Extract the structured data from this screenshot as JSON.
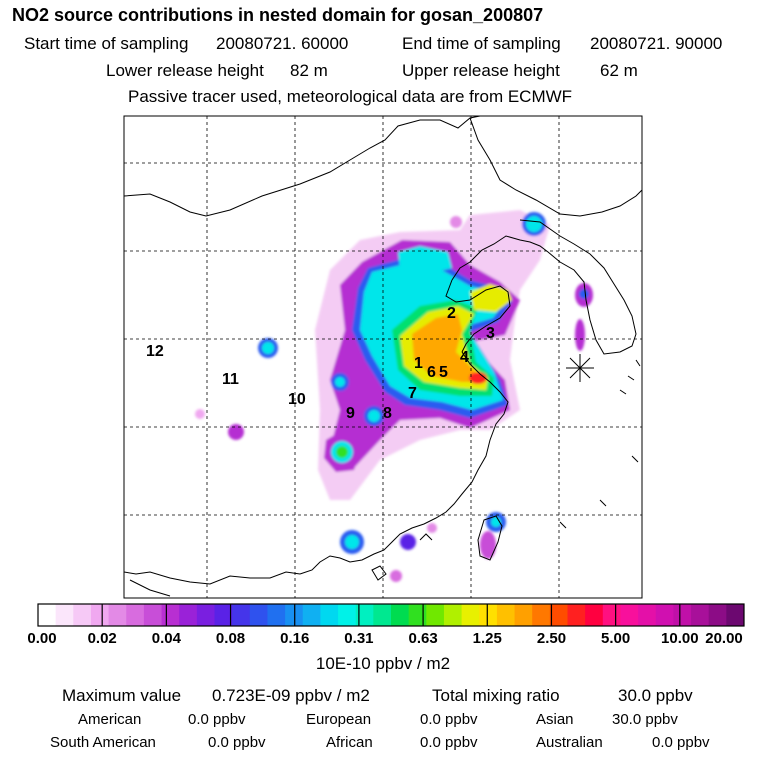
{
  "header": {
    "title": "NO2 source contributions in nested domain for gosan_200807",
    "start_label": "Start time of sampling",
    "start_value": "20080721. 60000",
    "end_label": "End time of sampling",
    "end_value": "20080721. 90000",
    "lower_label": "Lower release height",
    "lower_value": "82 m",
    "upper_label": "Upper release height",
    "upper_value": "62 m",
    "note": "Passive tracer used, meteorological data are from ECMWF"
  },
  "map": {
    "region_labels": [
      "1",
      "2",
      "3",
      "4",
      "5",
      "6",
      "7",
      "8",
      "9",
      "10",
      "11",
      "12"
    ],
    "receptor": "Gosan",
    "colors": {
      "land_outline": "#000000",
      "grid": "#000000"
    }
  },
  "colorbar": {
    "ticks": [
      "0.00",
      "0.02",
      "0.04",
      "0.08",
      "0.16",
      "0.31",
      "0.63",
      "1.25",
      "2.50",
      "5.00",
      "10.00",
      "20.00"
    ],
    "unit": "10E-10 ppbv / m2",
    "colors": [
      "#ffffff",
      "#fbe6fb",
      "#f6c9f6",
      "#f0a8f0",
      "#e38ae6",
      "#d86cdf",
      "#c84ed8",
      "#b82fd2",
      "#9a22d8",
      "#7a1fe0",
      "#5a22e6",
      "#4535ea",
      "#2f52ee",
      "#2070f0",
      "#1890f2",
      "#10b0f2",
      "#00d8f0",
      "#00f2e8",
      "#00f0c0",
      "#00e890",
      "#00dc50",
      "#30e020",
      "#70e800",
      "#b0f000",
      "#e8f000",
      "#ffe000",
      "#ffc000",
      "#ffa000",
      "#ff7800",
      "#ff4c00",
      "#ff2020",
      "#ff0040",
      "#ff1080",
      "#f8109c",
      "#e410a8",
      "#d010b0",
      "#c010a8",
      "#a8109a",
      "#8c0c86",
      "#6c0870"
    ]
  },
  "footer": {
    "max_label": "Maximum value",
    "max_value": "0.723E-09 ppbv / m2",
    "total_label": "Total mixing ratio",
    "total_value": "30.0 ppbv",
    "regions": [
      {
        "name": "American",
        "value": "0.0 ppbv"
      },
      {
        "name": "European",
        "value": "0.0 ppbv"
      },
      {
        "name": "Asian",
        "value": "30.0 ppbv"
      },
      {
        "name": "South American",
        "value": "0.0 ppbv"
      },
      {
        "name": "African",
        "value": "0.0 ppbv"
      },
      {
        "name": "Australian",
        "value": "0.0 ppbv"
      }
    ]
  }
}
